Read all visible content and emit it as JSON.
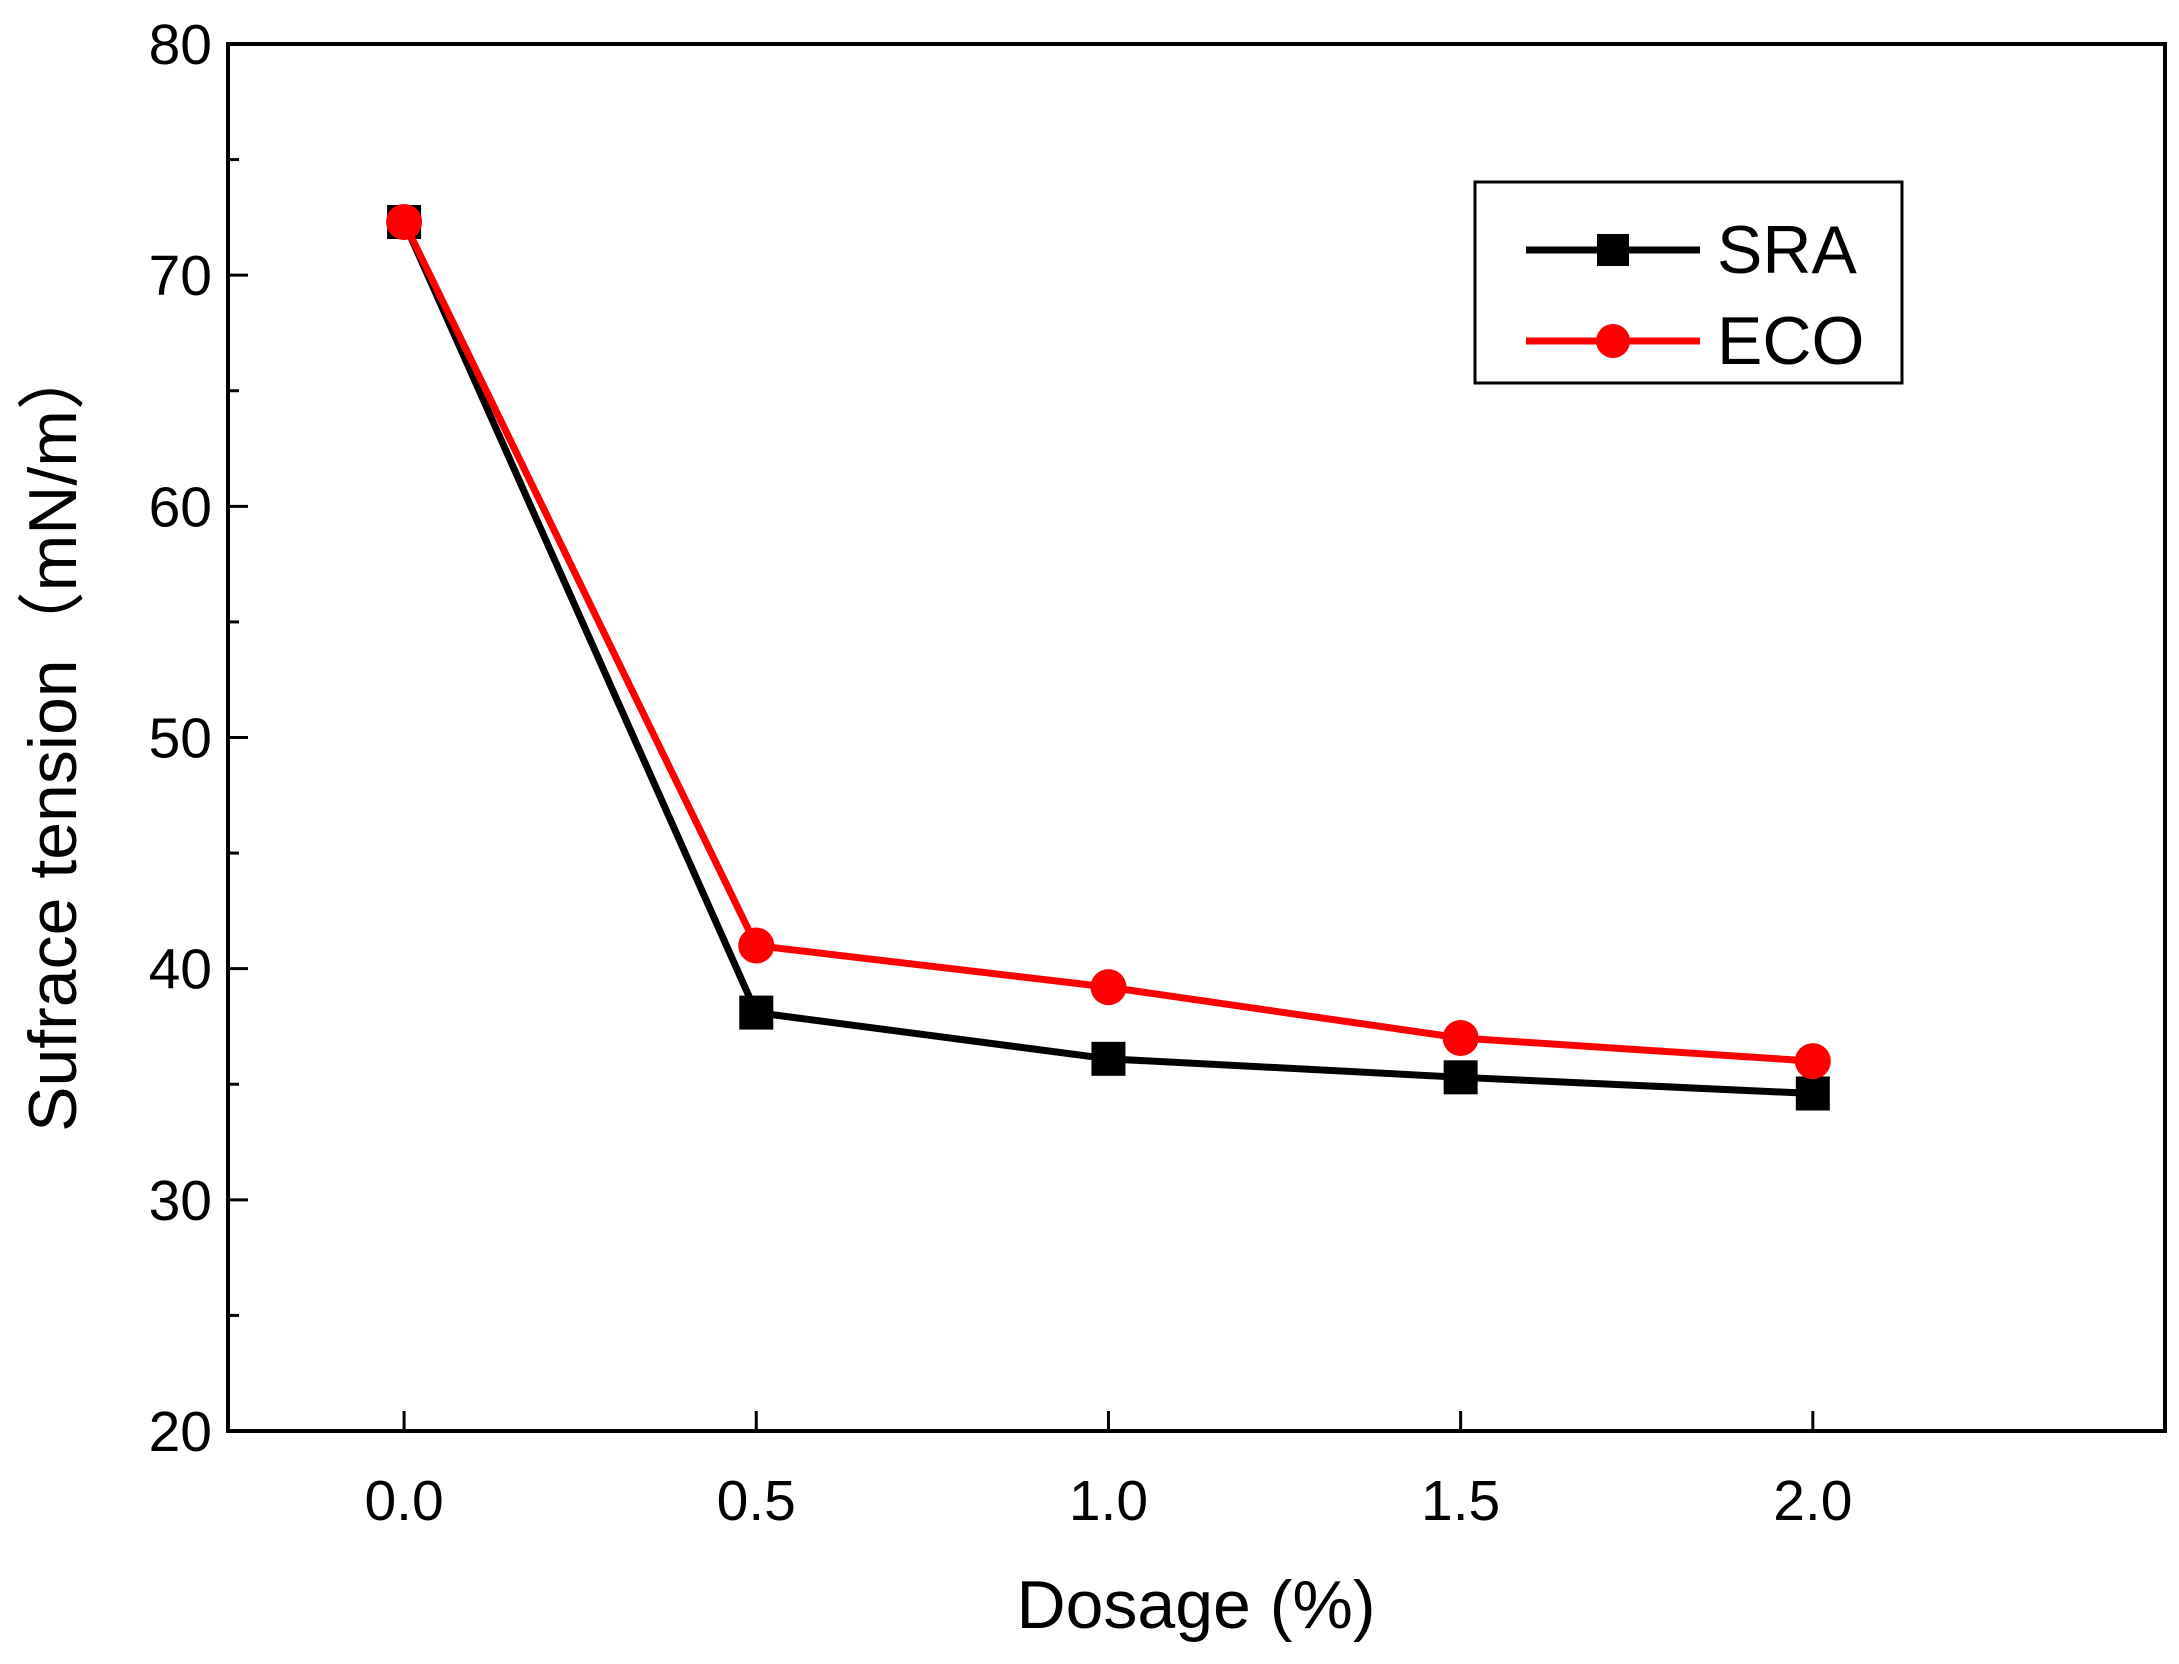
{
  "chart_data": {
    "type": "line",
    "xlabel": "Dosage (%)",
    "ylabel": "Sufrace tension（mN/m）",
    "xlim": [
      -0.25,
      2.5
    ],
    "ylim": [
      20,
      80
    ],
    "xticks": [
      "0.0",
      "0.5",
      "1.0",
      "1.5",
      "2.0"
    ],
    "yticks": [
      "20",
      "30",
      "40",
      "50",
      "60",
      "70",
      "80"
    ],
    "grid": false,
    "legend_position": "top-right",
    "x": [
      0.0,
      0.5,
      1.0,
      1.5,
      2.0
    ],
    "series": [
      {
        "name": "SRA",
        "color": "#000000",
        "marker": "square",
        "values": [
          72.3,
          38.1,
          36.1,
          35.3,
          34.6
        ]
      },
      {
        "name": "ECO",
        "color": "#ff0000",
        "marker": "circle",
        "values": [
          72.3,
          41.0,
          39.2,
          37.0,
          36.0
        ]
      }
    ]
  }
}
